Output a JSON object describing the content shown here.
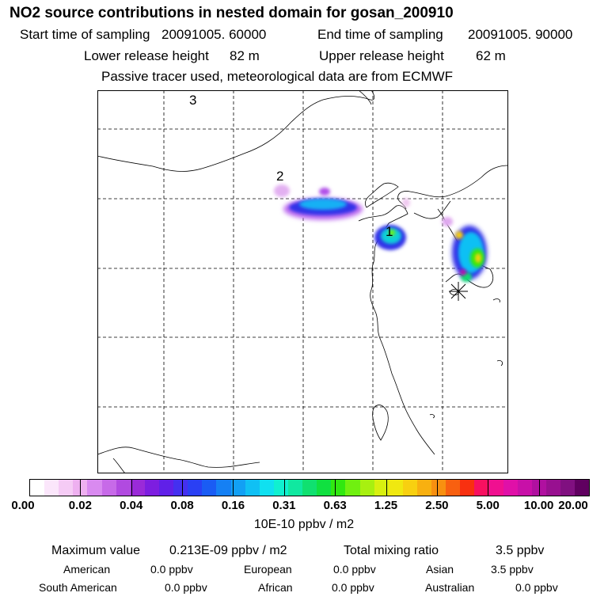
{
  "title": "NO2 source contributions in nested domain for gosan_200910",
  "header": {
    "start_label": "Start time of sampling",
    "start_value": "20091005. 60000",
    "end_label": "End time of sampling",
    "end_value": "20091005. 90000",
    "lower_label": "Lower release height",
    "lower_value": "82 m",
    "upper_label": "Upper release height",
    "upper_value": "62 m",
    "note": "Passive tracer used, meteorological data are from ECMWF"
  },
  "map": {
    "region_labels": [
      "3",
      "2",
      "1"
    ]
  },
  "colorbar": {
    "ticks": [
      "0.00",
      "0.02",
      "0.04",
      "0.08",
      "0.16",
      "0.31",
      "0.63",
      "1.25",
      "2.50",
      "5.00",
      "10.00",
      "20.00"
    ],
    "colors": [
      "#ffffff",
      "#fbe6fb",
      "#f5cbf5",
      "#eeb0f0",
      "#d98af0",
      "#c76ae8",
      "#b14ae0",
      "#9a2ad8",
      "#7d1ee0",
      "#6020e8",
      "#4430f0",
      "#2a40f4",
      "#1a5cf4",
      "#1580f4",
      "#12a0f4",
      "#10c0f4",
      "#10e0f0",
      "#10f0d0",
      "#10e8a0",
      "#10e070",
      "#10e040",
      "#30e810",
      "#70f010",
      "#a8f010",
      "#d8f010",
      "#f0e810",
      "#f8d010",
      "#f8b010",
      "#f89010",
      "#f86010",
      "#f83010",
      "#f81060",
      "#f01090",
      "#e010a8",
      "#c810a8",
      "#b010a0",
      "#981090",
      "#801080",
      "#600060"
    ],
    "unit": "10E-10 ppbv / m2"
  },
  "stats": {
    "max_label": "Maximum value",
    "max_value": "0.213E-09 ppbv / m2",
    "total_label": "Total mixing ratio",
    "total_value": "3.5 ppbv",
    "regions": [
      {
        "name": "American",
        "value": "0.0 ppbv"
      },
      {
        "name": "European",
        "value": "0.0 ppbv"
      },
      {
        "name": "Asian",
        "value": "3.5 ppbv"
      },
      {
        "name": "South American",
        "value": "0.0 ppbv"
      },
      {
        "name": "African",
        "value": "0.0 ppbv"
      },
      {
        "name": "Australian",
        "value": "0.0 ppbv"
      }
    ]
  }
}
